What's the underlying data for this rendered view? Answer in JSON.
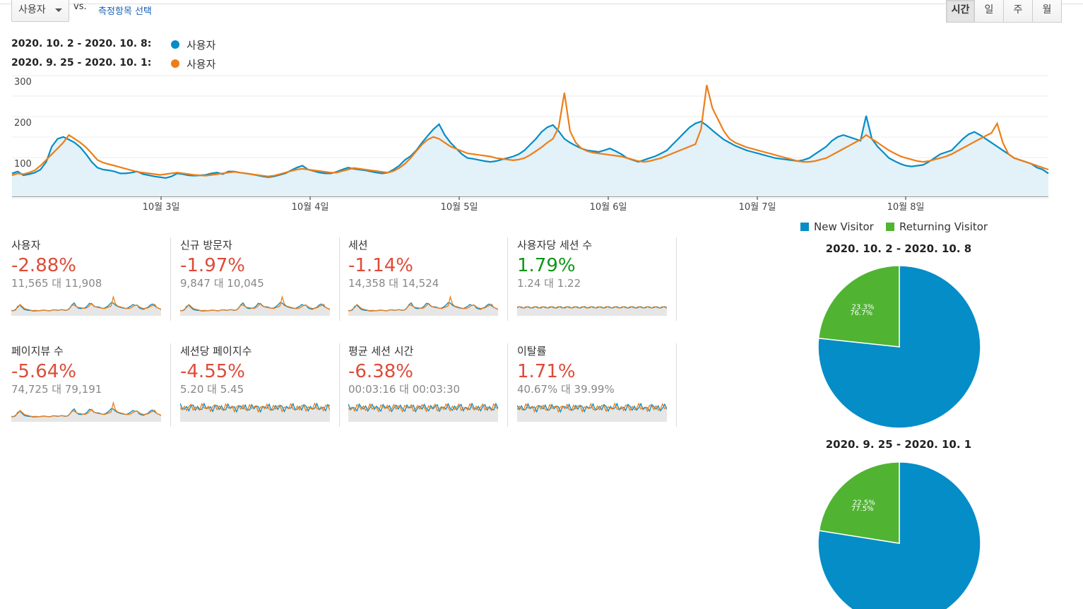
{
  "toolbar": {
    "metric_select": "사용자",
    "vs_label": "vs.",
    "compare_link": "측정항목 선택",
    "granularity": [
      "시간",
      "일",
      "주",
      "월"
    ],
    "active_granularity": "시간"
  },
  "legend": [
    {
      "range": "2020. 10. 2 - 2020. 10. 8:",
      "metric": "사용자",
      "color": "#058dc7"
    },
    {
      "range": "2020. 9. 25 - 2020. 10. 1:",
      "metric": "사용자",
      "color": "#ed7e17"
    }
  ],
  "chart_data": {
    "type": "line",
    "title": "",
    "y_ticks": [
      "300",
      "200",
      "100"
    ],
    "ylim": [
      0,
      300
    ],
    "x_labels": [
      "10월 3일",
      "10월 4일",
      "10월 5일",
      "10월 6일",
      "10월 7일",
      "10월 8일"
    ],
    "series": [
      {
        "name": "사용자 (2020. 10. 2 - 2020. 10. 8)",
        "color": "#058dc7",
        "values": [
          60,
          65,
          55,
          58,
          62,
          70,
          90,
          130,
          150,
          155,
          148,
          140,
          128,
          110,
          90,
          75,
          70,
          68,
          65,
          60,
          60,
          62,
          65,
          58,
          55,
          52,
          50,
          48,
          52,
          60,
          58,
          55,
          54,
          55,
          56,
          60,
          62,
          58,
          65,
          65,
          62,
          60,
          58,
          55,
          52,
          50,
          52,
          56,
          60,
          68,
          75,
          80,
          70,
          66,
          62,
          60,
          60,
          64,
          70,
          75,
          72,
          70,
          68,
          65,
          62,
          60,
          62,
          70,
          80,
          95,
          105,
          120,
          140,
          158,
          175,
          188,
          160,
          140,
          125,
          110,
          100,
          98,
          95,
          92,
          90,
          92,
          96,
          100,
          104,
          110,
          120,
          135,
          150,
          168,
          180,
          186,
          170,
          150,
          140,
          132,
          125,
          120,
          118,
          116,
          120,
          125,
          118,
          110,
          100,
          95,
          90,
          95,
          100,
          105,
          112,
          120,
          135,
          150,
          165,
          180,
          190,
          195,
          185,
          172,
          160,
          148,
          140,
          132,
          126,
          120,
          116,
          112,
          108,
          104,
          100,
          98,
          96,
          94,
          92,
          95,
          100,
          110,
          120,
          130,
          145,
          155,
          160,
          155,
          150,
          145,
          210,
          150,
          130,
          115,
          100,
          92,
          85,
          80,
          78,
          80,
          82,
          90,
          100,
          110,
          115,
          120,
          135,
          150,
          162,
          168,
          160,
          150,
          140,
          130,
          120,
          110,
          100,
          95,
          90,
          85,
          75,
          70,
          60
        ]
      },
      {
        "name": "사용자 (2020. 9. 25 - 2020. 10. 1)",
        "color": "#ed7e17",
        "values": [
          55,
          60,
          58,
          62,
          68,
          80,
          95,
          110,
          125,
          140,
          160,
          150,
          140,
          128,
          112,
          95,
          88,
          84,
          80,
          76,
          72,
          68,
          64,
          62,
          60,
          58,
          56,
          58,
          60,
          62,
          60,
          58,
          56,
          55,
          54,
          56,
          58,
          60,
          62,
          64,
          62,
          60,
          58,
          56,
          54,
          52,
          54,
          58,
          62,
          66,
          70,
          72,
          70,
          68,
          66,
          64,
          62,
          62,
          66,
          70,
          74,
          72,
          70,
          68,
          66,
          64,
          62,
          66,
          74,
          85,
          100,
          118,
          135,
          148,
          155,
          150,
          140,
          130,
          124,
          118,
          112,
          110,
          108,
          106,
          104,
          100,
          98,
          96,
          94,
          96,
          100,
          108,
          118,
          128,
          140,
          150,
          180,
          270,
          170,
          140,
          125,
          118,
          114,
          112,
          110,
          108,
          106,
          104,
          100,
          96,
          92,
          90,
          92,
          96,
          100,
          106,
          112,
          118,
          124,
          130,
          136,
          175,
          290,
          230,
          200,
          170,
          150,
          140,
          134,
          128,
          124,
          120,
          116,
          112,
          108,
          104,
          100,
          96,
          92,
          90,
          90,
          92,
          96,
          100,
          108,
          116,
          124,
          132,
          140,
          148,
          160,
          150,
          140,
          130,
          120,
          112,
          105,
          100,
          96,
          92,
          90,
          92,
          96,
          100,
          104,
          110,
          118,
          126,
          134,
          142,
          150,
          158,
          165,
          190,
          140,
          110,
          100,
          95,
          90,
          85,
          80,
          75,
          70
        ]
      }
    ]
  },
  "metrics_row1": [
    {
      "name": "사용자",
      "change": "-2.88%",
      "compare": "11,565 대 11,908",
      "trend": "down"
    },
    {
      "name": "신규 방문자",
      "change": "-1.97%",
      "compare": "9,847 대 10,045",
      "trend": "down"
    },
    {
      "name": "세션",
      "change": "-1.14%",
      "compare": "14,358 대 14,524",
      "trend": "down"
    },
    {
      "name": "사용자당 세션 수",
      "change": "1.79%",
      "compare": "1.24 대 1.22",
      "trend": "up"
    }
  ],
  "metrics_row2": [
    {
      "name": "페이지뷰 수",
      "change": "-5.64%",
      "compare": "74,725 대 79,191",
      "trend": "down"
    },
    {
      "name": "세션당 페이지수",
      "change": "-4.55%",
      "compare": "5.20 대 5.45",
      "trend": "down"
    },
    {
      "name": "평균 세션 시간",
      "change": "-6.38%",
      "compare": "00:03:16 대 00:03:30",
      "trend": "down"
    },
    {
      "name": "이탈률",
      "change": "1.71%",
      "compare": "40.67% 대 39.99%",
      "trend": "up-bad"
    }
  ],
  "colors": {
    "down": "#dd4b39",
    "up": "#109618",
    "up-bad": "#dd4b39",
    "blue": "#058dc7",
    "orange": "#ed7e17",
    "green": "#50b432"
  },
  "pie_legend": {
    "new": "New Visitor",
    "returning": "Returning Visitor"
  },
  "pies": [
    {
      "title": "2020. 10. 2 - 2020. 10. 8",
      "new_pct": 76.7,
      "returning_pct": 23.3,
      "new_label": "76.7%",
      "returning_label": "23.3%"
    },
    {
      "title": "2020. 9. 25 - 2020. 10. 1",
      "new_pct": 77.5,
      "returning_pct": 22.5,
      "new_label": "77.5%",
      "returning_label": "22.5%"
    }
  ]
}
